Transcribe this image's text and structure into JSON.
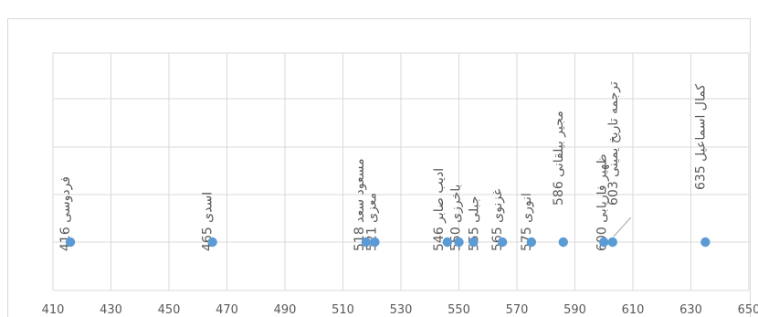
{
  "chart_data": {
    "type": "scatter",
    "title": "",
    "xlabel": "",
    "ylabel": "",
    "xlim": [
      410,
      650
    ],
    "x_ticks": [
      410,
      430,
      450,
      470,
      490,
      510,
      530,
      550,
      570,
      590,
      610,
      630,
      650
    ],
    "grid": true,
    "legend": "none",
    "point_color": "#5b9bd5",
    "points": [
      {
        "x": 416,
        "label": "416 فردوسی"
      },
      {
        "x": 465,
        "label": "465 اسدی"
      },
      {
        "x": 518,
        "label": "518 مسعود سعد"
      },
      {
        "x": 521,
        "label": "521 معزی"
      },
      {
        "x": 546,
        "label": "546 ادیب صابر"
      },
      {
        "x": 550,
        "label": "550 باخرزی"
      },
      {
        "x": 555,
        "label": "555 جبلی"
      },
      {
        "x": 565,
        "label": "565 غزنوی"
      },
      {
        "x": 575,
        "label": "575 انوری"
      },
      {
        "x": 586,
        "label": "586 مجیر بیلقانی"
      },
      {
        "x": 600,
        "label": "600 ظهیر فاریابی"
      },
      {
        "x": 603,
        "label": "603 ترجمه تاریخ یمینی"
      },
      {
        "x": 635,
        "label": "635 کمال اسماعیل"
      }
    ]
  }
}
